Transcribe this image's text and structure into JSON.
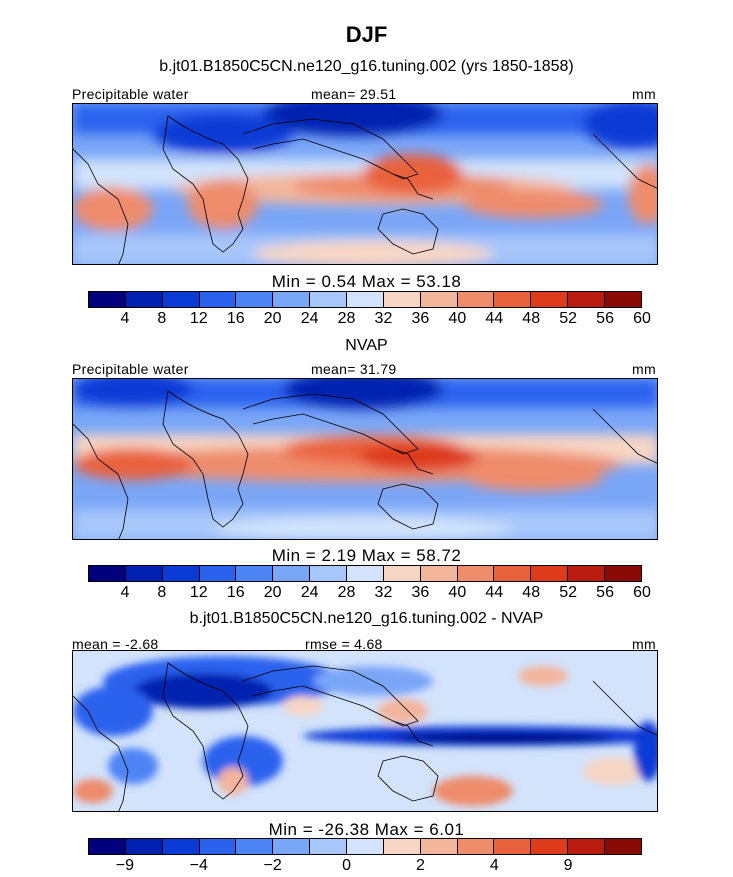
{
  "title": "DJF",
  "panels": [
    {
      "subtitle": "b.jt01.B1850C5CN.ne120_g16.tuning.002 (yrs 1850-1858)",
      "left_label": "Precipitable water",
      "center_label": "mean=   29.51",
      "right_label": "mm",
      "stats": "Min =    0.54  Max =   53.18",
      "colorbar": {
        "colors": [
          "#00007f",
          "#0020b0",
          "#0a3bd6",
          "#2a62ee",
          "#4d84f5",
          "#7aa6f7",
          "#a7c6fa",
          "#d2e3fb",
          "#f7d6c5",
          "#f3b59c",
          "#ee8c6c",
          "#e9623e",
          "#de3a1c",
          "#b71c0e",
          "#8a0b05"
        ],
        "ticks": [
          "4",
          "8",
          "12",
          "16",
          "20",
          "24",
          "28",
          "32",
          "36",
          "40",
          "44",
          "48",
          "52",
          "56",
          "60"
        ]
      }
    },
    {
      "subtitle": "NVAP",
      "left_label": "Precipitable water",
      "center_label": "mean=   31.79",
      "right_label": "mm",
      "stats": "Min =    2.19  Max =   58.72",
      "colorbar": {
        "colors": [
          "#00007f",
          "#0020b0",
          "#0a3bd6",
          "#2a62ee",
          "#4d84f5",
          "#7aa6f7",
          "#a7c6fa",
          "#d2e3fb",
          "#f7d6c5",
          "#f3b59c",
          "#ee8c6c",
          "#e9623e",
          "#de3a1c",
          "#b71c0e",
          "#8a0b05"
        ],
        "ticks": [
          "4",
          "8",
          "12",
          "16",
          "20",
          "24",
          "28",
          "32",
          "36",
          "40",
          "44",
          "48",
          "52",
          "56",
          "60"
        ]
      }
    },
    {
      "subtitle": "b.jt01.B1850C5CN.ne120_g16.tuning.002 - NVAP",
      "left_label": "mean =   -2.68",
      "center_label": "rmse =    4.68",
      "right_label": "mm",
      "stats": "Min =  -26.38  Max =    6.01",
      "colorbar": {
        "colors": [
          "#00007f",
          "#0020b0",
          "#0a3bd6",
          "#2a62ee",
          "#4d84f5",
          "#7aa6f7",
          "#a7c6fa",
          "#d2e3fb",
          "#f7d6c5",
          "#f3b59c",
          "#ee8c6c",
          "#e9623e",
          "#de3a1c",
          "#b71c0e",
          "#8a0b05"
        ],
        "ticks": [
          "-9",
          "-4",
          "-2",
          "0",
          "2",
          "4",
          "9"
        ]
      }
    }
  ]
}
